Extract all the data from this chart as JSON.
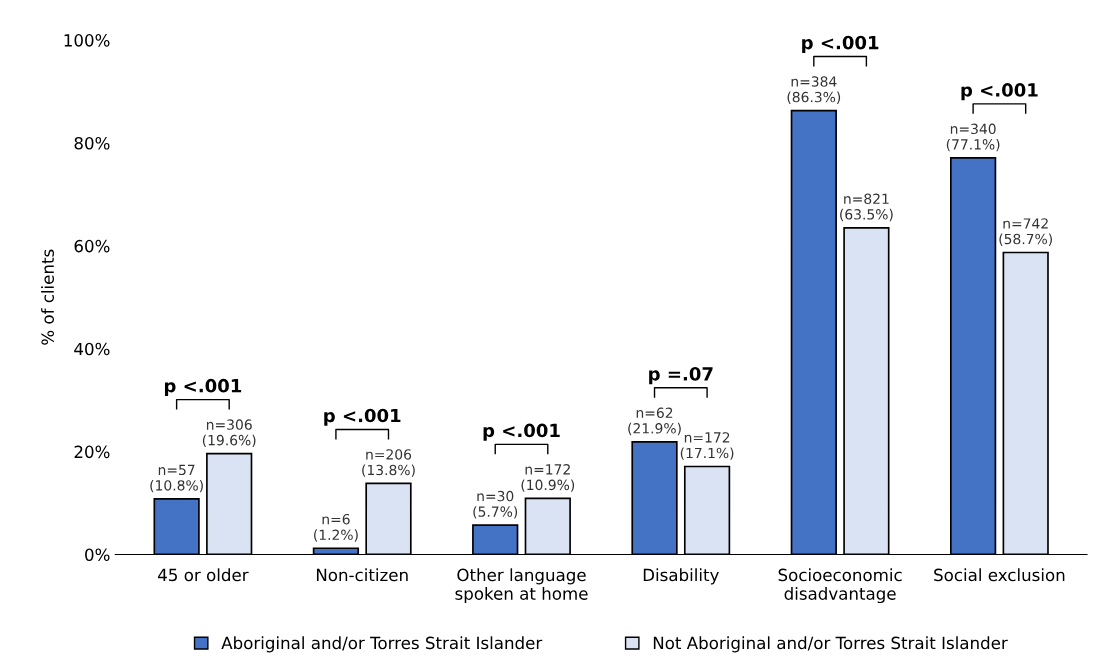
{
  "chart_data": {
    "type": "bar",
    "ylabel": "% of clients",
    "categories": [
      "45 or older",
      "Non-citizen",
      "Other language\nspoken at home",
      "Disability",
      "Socioeconomic\ndisadvantage",
      "Social exclusion"
    ],
    "series": [
      {
        "name": "Aboriginal and/or Torres Strait Islander",
        "color": "#4472c4",
        "values": [
          10.8,
          1.2,
          5.7,
          21.9,
          86.3,
          77.1
        ],
        "value_labels": [
          "n=57\n(10.8%)",
          "n=6\n(1.2%)",
          "n=30\n(5.7%)",
          "n=62\n(21.9%)",
          "n=384\n(86.3%)",
          "n=340\n(77.1%)"
        ]
      },
      {
        "name": "Not Aboriginal and/or Torres Strait Islander",
        "color": "#dae3f3",
        "values": [
          19.6,
          13.8,
          10.9,
          17.1,
          63.5,
          58.7
        ],
        "value_labels": [
          "n=306\n(19.6%)",
          "n=206\n(13.8%)",
          "n=172\n(10.9%)",
          "n=172\n(17.1%)",
          "n=821\n(63.5%)",
          "n=742\n(58.7%)"
        ]
      }
    ],
    "ylim": [
      0,
      100
    ],
    "yticks": [
      {
        "value": 0,
        "label": "0%"
      },
      {
        "value": 20,
        "label": "20%"
      },
      {
        "value": 40,
        "label": "40%"
      },
      {
        "value": 60,
        "label": "60%"
      },
      {
        "value": 80,
        "label": "80%"
      },
      {
        "value": 100,
        "label": "100%"
      }
    ],
    "annotations": [
      "p <.001",
      "p <.001",
      "p <.001",
      "p =.07",
      "p <.001",
      "p <.001"
    ],
    "grid": false,
    "legend": "bottom"
  }
}
